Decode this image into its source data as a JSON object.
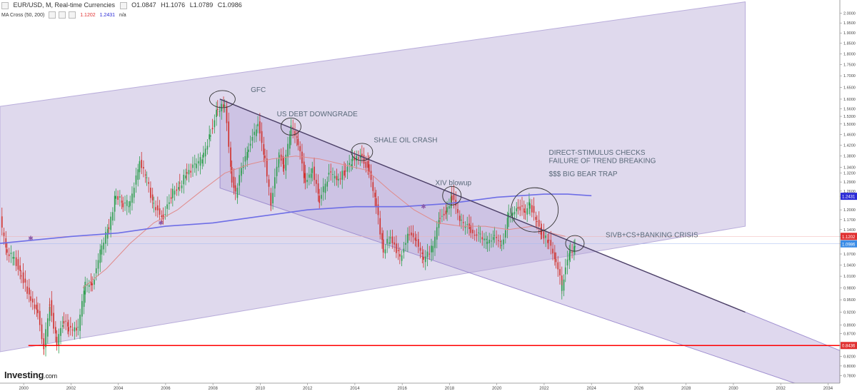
{
  "header": {
    "symbol": "EUR/USD, M, Real-time Currencies",
    "o_label": "O",
    "o": "1.0847",
    "h_label": "H",
    "h": "1.1076",
    "l_label": "L",
    "l": "1.0789",
    "c_label": "C",
    "c": "1.0986",
    "ma_label": "MA Cross (50, 200)",
    "ma50": "1.1202",
    "ma200": "1.2431",
    "ma_extra": "n/a"
  },
  "logo": {
    "brand": "Investing",
    "suffix": ".com"
  },
  "colors": {
    "up": "#2e9e4f",
    "down": "#d0312d",
    "channel": "#d9d2ea",
    "channel_inner": "#cbc2e2",
    "ma50": "#e08a8a",
    "ma200": "#6e6ee6",
    "support": "#ff0000",
    "trendline": "#4b3f66",
    "text": "#5a6a7a"
  },
  "chart_data": {
    "type": "candlestick",
    "x_axis": {
      "min": 1999,
      "max": 2034.5,
      "ticks": [
        "2000",
        "2002",
        "2004",
        "2006",
        "2008",
        "2010",
        "2012",
        "2014",
        "2016",
        "2018",
        "2020",
        "2022",
        "2024",
        "2026",
        "2028",
        "2030",
        "2032",
        "2034"
      ]
    },
    "y_axis": {
      "min": 0.765,
      "max": 2.07,
      "ticks": [
        "0.7800",
        "0.8000",
        "0.8200",
        "0.8436",
        "0.8700",
        "0.8900",
        "0.9200",
        "0.9500",
        "0.9800",
        "1.0100",
        "1.0400",
        "1.0700",
        "1.0986",
        "1.1202",
        "1.1400",
        "1.1700",
        "1.2000",
        "1.2431",
        "1.2600",
        "1.2900",
        "1.3200",
        "1.3400",
        "1.3800",
        "1.4200",
        "1.4600",
        "1.5000",
        "1.5300",
        "1.5600",
        "1.6000",
        "1.6500",
        "1.7000",
        "1.7500",
        "1.8000",
        "1.8500",
        "1.9000",
        "1.9500",
        "2.0000"
      ],
      "scale": "log"
    },
    "price_series": [
      [
        1999.0,
        1.17
      ],
      [
        1999.3,
        1.07
      ],
      [
        1999.6,
        1.06
      ],
      [
        1999.9,
        1.01
      ],
      [
        2000.3,
        0.95
      ],
      [
        2000.6,
        0.92
      ],
      [
        2000.85,
        0.84
      ],
      [
        2001.1,
        0.94
      ],
      [
        2001.4,
        0.85
      ],
      [
        2001.7,
        0.9
      ],
      [
        2001.9,
        0.88
      ],
      [
        2002.3,
        0.88
      ],
      [
        2002.6,
        0.99
      ],
      [
        2002.9,
        0.99
      ],
      [
        2003.3,
        1.09
      ],
      [
        2003.6,
        1.15
      ],
      [
        2003.9,
        1.25
      ],
      [
        2004.2,
        1.22
      ],
      [
        2004.5,
        1.22
      ],
      [
        2004.9,
        1.36
      ],
      [
        2005.2,
        1.3
      ],
      [
        2005.5,
        1.21
      ],
      [
        2005.9,
        1.18
      ],
      [
        2006.3,
        1.26
      ],
      [
        2006.6,
        1.28
      ],
      [
        2006.9,
        1.32
      ],
      [
        2007.3,
        1.35
      ],
      [
        2007.6,
        1.38
      ],
      [
        2007.9,
        1.47
      ],
      [
        2008.2,
        1.56
      ],
      [
        2008.5,
        1.58
      ],
      [
        2008.8,
        1.3
      ],
      [
        2008.95,
        1.25
      ],
      [
        2009.2,
        1.33
      ],
      [
        2009.5,
        1.41
      ],
      [
        2009.9,
        1.5
      ],
      [
        2010.2,
        1.36
      ],
      [
        2010.45,
        1.22
      ],
      [
        2010.8,
        1.39
      ],
      [
        2011.0,
        1.34
      ],
      [
        2011.3,
        1.48
      ],
      [
        2011.6,
        1.43
      ],
      [
        2011.9,
        1.29
      ],
      [
        2012.2,
        1.33
      ],
      [
        2012.5,
        1.23
      ],
      [
        2012.9,
        1.32
      ],
      [
        2013.3,
        1.3
      ],
      [
        2013.6,
        1.33
      ],
      [
        2013.9,
        1.37
      ],
      [
        2014.3,
        1.38
      ],
      [
        2014.6,
        1.33
      ],
      [
        2014.9,
        1.21
      ],
      [
        2015.2,
        1.08
      ],
      [
        2015.5,
        1.12
      ],
      [
        2015.9,
        1.06
      ],
      [
        2016.3,
        1.13
      ],
      [
        2016.6,
        1.11
      ],
      [
        2016.9,
        1.05
      ],
      [
        2017.3,
        1.09
      ],
      [
        2017.6,
        1.18
      ],
      [
        2017.9,
        1.2
      ],
      [
        2018.1,
        1.24
      ],
      [
        2018.5,
        1.16
      ],
      [
        2018.9,
        1.14
      ],
      [
        2019.3,
        1.12
      ],
      [
        2019.6,
        1.1
      ],
      [
        2019.9,
        1.12
      ],
      [
        2020.2,
        1.1
      ],
      [
        2020.5,
        1.18
      ],
      [
        2020.9,
        1.21
      ],
      [
        2021.2,
        1.19
      ],
      [
        2021.4,
        1.22
      ],
      [
        2021.7,
        1.16
      ],
      [
        2021.9,
        1.13
      ],
      [
        2022.2,
        1.1
      ],
      [
        2022.5,
        1.05
      ],
      [
        2022.75,
        0.98
      ],
      [
        2022.9,
        1.03
      ],
      [
        2023.1,
        1.07
      ],
      [
        2023.3,
        1.09
      ]
    ],
    "ma50": [
      [
        2002.5,
        0.98
      ],
      [
        2003.5,
        1.03
      ],
      [
        2004.5,
        1.1
      ],
      [
        2005.5,
        1.16
      ],
      [
        2006.5,
        1.2
      ],
      [
        2007.5,
        1.26
      ],
      [
        2008.5,
        1.32
      ],
      [
        2009.5,
        1.35
      ],
      [
        2010.5,
        1.37
      ],
      [
        2011.5,
        1.38
      ],
      [
        2012.5,
        1.37
      ],
      [
        2013.5,
        1.35
      ],
      [
        2014.5,
        1.33
      ],
      [
        2015.5,
        1.26
      ],
      [
        2016.5,
        1.2
      ],
      [
        2017.5,
        1.16
      ],
      [
        2018.5,
        1.15
      ],
      [
        2019.5,
        1.15
      ],
      [
        2020.5,
        1.14
      ],
      [
        2021.5,
        1.15
      ],
      [
        2022.3,
        1.13
      ],
      [
        2022.9,
        1.12
      ]
    ],
    "ma200": [
      [
        1999.0,
        1.1
      ],
      [
        2002.0,
        1.12
      ],
      [
        2004.0,
        1.13
      ],
      [
        2006.0,
        1.15
      ],
      [
        2008.0,
        1.16
      ],
      [
        2010.0,
        1.18
      ],
      [
        2012.0,
        1.2
      ],
      [
        2014.0,
        1.21
      ],
      [
        2016.0,
        1.21
      ],
      [
        2018.0,
        1.22
      ],
      [
        2020.0,
        1.24
      ],
      [
        2022.0,
        1.25
      ],
      [
        2023.0,
        1.25
      ],
      [
        2024.0,
        1.245
      ]
    ],
    "ma_cross_marks": [
      [
        2000.3,
        1.115
      ],
      [
        2005.8,
        1.16
      ],
      [
        2016.9,
        1.21
      ]
    ],
    "channels": {
      "outer_upper": [
        [
          1999.0,
          1.57
        ],
        [
          2030.5,
          2.06
        ]
      ],
      "outer_lower": [
        [
          1999.0,
          0.83
        ],
        [
          2030.5,
          1.15
        ]
      ],
      "down_upper": [
        [
          2008.3,
          1.6
        ],
        [
          2030.5,
          0.92
        ]
      ],
      "down_lower": [
        [
          2008.3,
          1.27
        ],
        [
          2034.5,
          0.735
        ]
      ]
    },
    "trendline": [
      [
        2008.3,
        1.6
      ],
      [
        2030.5,
        0.92
      ]
    ],
    "support": {
      "value": 0.8436
    },
    "price_labels": [
      {
        "value": "1.2431",
        "y": 1.2431,
        "color": "#2a2ad6"
      },
      {
        "value": "1.1202",
        "y": 1.1202,
        "color": "#e03030"
      },
      {
        "value": "1.0986",
        "y": 1.0986,
        "color": "#3a8ce6"
      },
      {
        "value": "0.8436",
        "y": 0.8436,
        "color": "#e03030"
      }
    ],
    "annotations": [
      {
        "text": "GFC",
        "x": 2009.6,
        "y": 1.63
      },
      {
        "text": "US DEBT DOWNGRADE",
        "x": 2010.7,
        "y": 1.53
      },
      {
        "text": "SHALE OIL CRASH",
        "x": 2014.8,
        "y": 1.43
      },
      {
        "text": "XIV blowup",
        "x": 2017.4,
        "y": 1.28
      },
      {
        "text": "DIRECT-STIMULUS CHECKS",
        "x": 2022.2,
        "y": 1.385
      },
      {
        "text": "FAILURE OF TREND BREAKING",
        "x": 2022.2,
        "y": 1.355
      },
      {
        "text": "$$$ BIG BEAR TRAP",
        "x": 2022.2,
        "y": 1.31
      },
      {
        "text": "SIVB+CS+BANKING CRISIS",
        "x": 2024.6,
        "y": 1.118
      }
    ],
    "circles": [
      {
        "x": 2008.4,
        "y": 1.6,
        "rx": 18,
        "ry": 12
      },
      {
        "x": 2011.3,
        "y": 1.49,
        "rx": 14,
        "ry": 12
      },
      {
        "x": 2014.3,
        "y": 1.395,
        "rx": 15,
        "ry": 12
      },
      {
        "x": 2018.1,
        "y": 1.245,
        "rx": 13,
        "ry": 13
      },
      {
        "x": 2021.6,
        "y": 1.2,
        "rx": 33,
        "ry": 31
      },
      {
        "x": 2023.3,
        "y": 1.1,
        "rx": 13,
        "ry": 11
      }
    ]
  }
}
